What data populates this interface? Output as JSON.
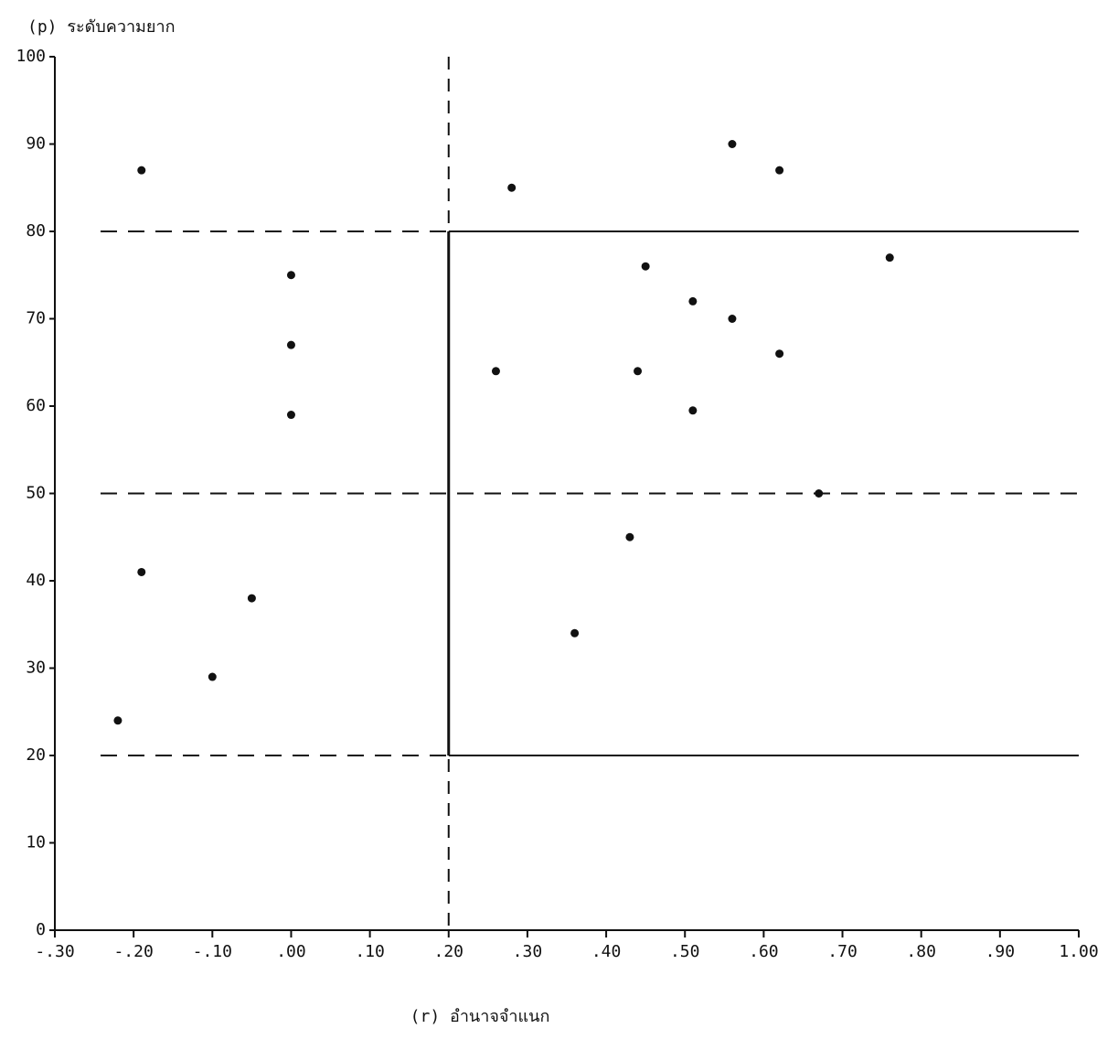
{
  "chart_data": {
    "type": "scatter",
    "title": "(p) ระดับความยาก",
    "x_label": "(r) อำนาจจำแนก",
    "color": "#111111",
    "x": [
      -0.19,
      0.28,
      0.56,
      0.62,
      0.0,
      0.76,
      0.45,
      0.51,
      0.56,
      0.0,
      0.62,
      0.26,
      0.44,
      0.0,
      0.51,
      0.67,
      0.43,
      -0.19,
      -0.05,
      0.36,
      -0.1,
      -0.22
    ],
    "values": [
      87,
      85,
      90,
      87,
      75,
      77,
      76,
      72,
      70,
      67,
      66,
      64,
      64,
      59,
      59.5,
      50,
      45,
      41,
      38,
      34,
      29,
      24
    ],
    "xlim": [
      -0.3,
      1.0
    ],
    "ylim": [
      0,
      100
    ],
    "xticks": [
      {
        "value": -0.3,
        "label": "-.30"
      },
      {
        "value": -0.2,
        "label": "-.20"
      },
      {
        "value": -0.1,
        "label": "-.10"
      },
      {
        "value": 0,
        "label": ".00"
      },
      {
        "value": 0.1,
        "label": ".10"
      },
      {
        "value": 0.2,
        "label": ".20"
      },
      {
        "value": 0.3,
        "label": ".30"
      },
      {
        "value": 0.4,
        "label": ".40"
      },
      {
        "value": 0.5,
        "label": ".50"
      },
      {
        "value": 0.6,
        "label": ".60"
      },
      {
        "value": 0.7,
        "label": ".70"
      },
      {
        "value": 0.8,
        "label": ".80"
      },
      {
        "value": 0.9,
        "label": ".90"
      },
      {
        "value": 1.0,
        "label": "1.00"
      }
    ],
    "yticks": [
      0,
      10,
      20,
      30,
      40,
      50,
      60,
      70,
      80,
      90,
      100
    ],
    "reference_y": [
      20,
      50,
      80
    ],
    "reference_x": 0.2
  }
}
